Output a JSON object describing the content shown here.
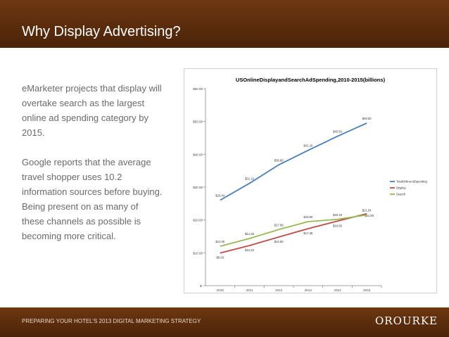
{
  "slide": {
    "title": "Why Display Advertising?",
    "paragraph1": "eMarketer projects that display will overtake search as the largest online ad spending category by 2015.",
    "paragraph2": "Google reports that the average travel shopper uses 10.2 information sources before buying. Being present on as many of these channels as possible is becoming more critical.",
    "footer": "PREPARING YOUR HOTEL’S 2013 DIGITAL MARKETING STRATEGY",
    "logo": "OROURKE"
  },
  "colors": {
    "header_bg": "#5a2c0c",
    "total_line": "#4a7ebb",
    "display_line": "#be4b48",
    "search_line": "#98b954"
  },
  "chart_data": {
    "type": "line",
    "title": "US\u0012Online\u0012Display\u0012and\u0012Search\u0012Ad\u0012Spending,\u00122010-2015\u0012(billions)\u0012",
    "categories": [
      "2010\u0012",
      "2011\u0012",
      "2012\u0012",
      "2013\u0012",
      "2014\u0012",
      "2015\u0012"
    ],
    "ylim": [
      0,
      60
    ],
    "yticks": [
      {
        "value": 0,
        "label": "$-\u0012"
      },
      {
        "value": 10,
        "label": "$10.00\u0012"
      },
      {
        "value": 20,
        "label": "$20.00\u0012"
      },
      {
        "value": 30,
        "label": "$30.00\u0012"
      },
      {
        "value": 40,
        "label": "$40.00\u0012"
      },
      {
        "value": 50,
        "label": "$50.00\u0012"
      },
      {
        "value": 60,
        "label": "$60.00\u0012"
      }
    ],
    "series": [
      {
        "name": "Total\u0012Online\u0012Ad\u0012Spending\u0012",
        "color": "#4a7ebb",
        "values": [
          26.04,
          31.16,
          36.8,
          41.2,
          45.5,
          49.5
        ],
        "labels": [
          "$26.04\u0012",
          "$31.16\u0012",
          "$36.80\u0012",
          "$41.20\u0012",
          "$45.50\u0012",
          "$49.50\u0012"
        ],
        "label_pos": [
          "above",
          "above",
          "above",
          "above",
          "above",
          "above"
        ]
      },
      {
        "name": "Display\u0012",
        "color": "#be4b48",
        "values": [
          9.93,
          12.22,
          14.82,
          17.36,
          19.66,
          21.9
        ],
        "labels": [
          "$9.93\u0012",
          "$12.22\u0012",
          "$14.82\u0012",
          "$17.36\u0012",
          "$19.66\u0012",
          "$21.90\u0012"
        ],
        "label_pos": [
          "below",
          "below",
          "below",
          "below",
          "below",
          "right"
        ]
      },
      {
        "name": "Search\u0012",
        "color": "#98b954",
        "values": [
          12.0,
          14.36,
          17.08,
          19.5,
          20.19,
          21.54
        ],
        "labels": [
          "$12.00\u0012",
          "$14.36\u0012",
          "$17.08\u0012",
          "$19.50\u0012",
          "$20.19\u0012",
          "$21.54\u0012"
        ],
        "label_pos": [
          "above",
          "above",
          "above",
          "above",
          "above",
          "above"
        ]
      }
    ],
    "legend": "right"
  }
}
